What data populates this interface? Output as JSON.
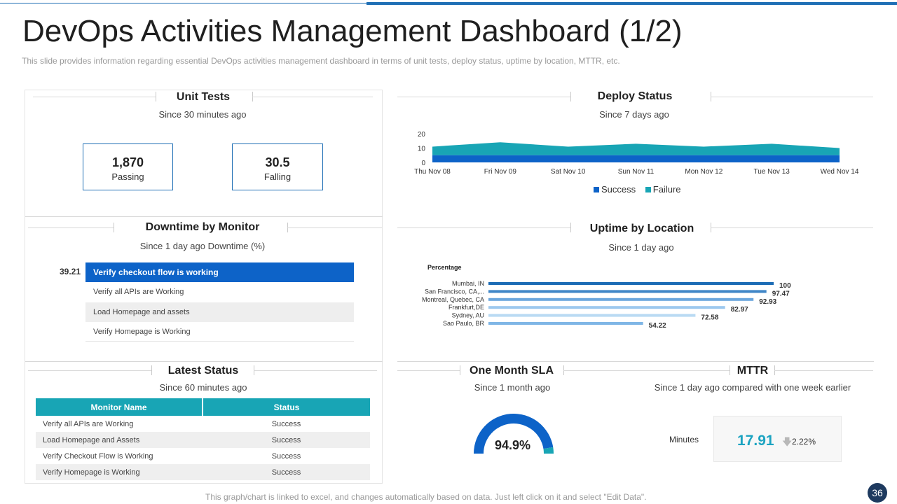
{
  "header": {
    "title": "DevOps Activities Management Dashboard (1/2)",
    "subtitle": "This slide provides  information  regarding  essential DevOps  activities management  dashboard  in terms of unit tests, deploy status, uptime by location, MTTR, etc."
  },
  "colors": {
    "accent_blue": "#1f6fb5",
    "success": "#0d63c8",
    "failure": "#18a5b5",
    "teal": "#1ba3c1",
    "badge": "#1e3a5f"
  },
  "unit_tests": {
    "title": "Unit Tests",
    "subtitle": "Since 30 minutes ago",
    "passing_value": "1,870",
    "passing_label": "Passing",
    "failing_value": "30.5",
    "failing_label": "Falling"
  },
  "downtime": {
    "title": "Downtime by Monitor",
    "subtitle": "Since 1 day ago    Downtime  (%)",
    "value": "39.21",
    "rows": [
      "Verify checkout flow is working",
      "Verify all APIs  are Working",
      "Load Homepage and assets",
      "Verify Homepage is Working"
    ]
  },
  "latest_status": {
    "title": "Latest Status",
    "subtitle": "Since 60 minutes ago",
    "headers": [
      "Monitor Name",
      "Status"
    ],
    "rows": [
      {
        "name": "Verify all APIs are Working",
        "status": "Success"
      },
      {
        "name": "Load Homepage and Assets",
        "status": "Success"
      },
      {
        "name": "Verify Checkout Flow is Working",
        "status": "Success"
      },
      {
        "name": "Verify Homepage is Working",
        "status": "Success"
      }
    ]
  },
  "deploy_status": {
    "title": "Deploy Status",
    "subtitle": "Since 7 days ago",
    "legend": [
      "Success",
      "Failure"
    ]
  },
  "uptime": {
    "title": "Uptime by Location",
    "subtitle": "Since 1 day ago"
  },
  "sla": {
    "title": "One Month SLA",
    "subtitle": "Since 1 month ago",
    "value_label": "94.9%",
    "value": 94.9
  },
  "mttr": {
    "title": "MTTR",
    "subtitle": "Since 1 day ago compared with one week earlier",
    "label": "Minutes",
    "value": "17.91",
    "change": "2.22%",
    "arrow_icon": "arrow-down-icon"
  },
  "footer": {
    "note": "This graph/chart is linked to excel, and changes automatically based on data. Just left click on it and select \"Edit Data\".",
    "page_number": "36"
  },
  "chart_data": [
    {
      "type": "area",
      "x": [
        "Thu Nov 08",
        "Fri Nov 09",
        "Sat Nov 10",
        "Sun Nov 11",
        "Mon Nov 12",
        "Tue Nov 13",
        "Wed Nov 14"
      ],
      "series": [
        {
          "name": "Success",
          "values": [
            5,
            5,
            5,
            5,
            5,
            5,
            5
          ]
        },
        {
          "name": "Failure",
          "values": [
            6,
            9,
            6,
            8,
            6,
            8,
            5
          ]
        }
      ],
      "stacked": true,
      "ylim": [
        0,
        20
      ],
      "yticks": [
        0,
        10,
        20
      ],
      "legend": "bottom"
    },
    {
      "type": "bar",
      "orientation": "horizontal",
      "ylabel": "Percentage",
      "categories": [
        "Mumbai, IN",
        "San Francisco, CA,...",
        "Montreal, Quebec, CA",
        "Frankfurt,DE",
        "Sydney, AU",
        "Sao Paulo, BR"
      ],
      "values": [
        100,
        97.47,
        92.93,
        82.97,
        72.58,
        54.22
      ],
      "labels": [
        "100",
        "97.47",
        "92.93",
        "82.97",
        "72.58",
        "54.22"
      ],
      "colors": [
        "#1c6cb5",
        "#3f86c7",
        "#6aa6dd",
        "#9cc8ee",
        "#b9daf3",
        "#7fb6e6"
      ]
    }
  ]
}
